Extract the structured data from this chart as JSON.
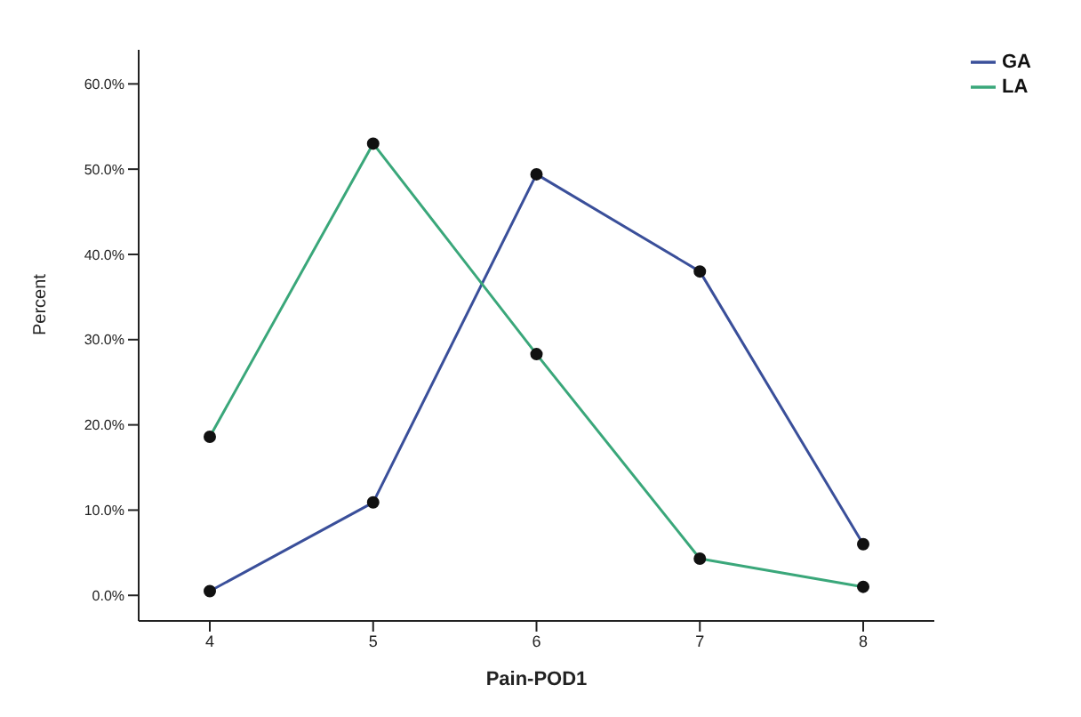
{
  "chart_data": {
    "type": "line",
    "xlabel": "Pain-POD1",
    "ylabel": "Percent",
    "categories": [
      "4",
      "5",
      "6",
      "7",
      "8"
    ],
    "series": [
      {
        "name": "GA",
        "color": "#3a4f9a",
        "values": [
          0.5,
          10.9,
          49.4,
          38,
          6
        ]
      },
      {
        "name": "LA",
        "color": "#3aa77a",
        "values": [
          18.6,
          53,
          28.3,
          4.3,
          1
        ]
      }
    ],
    "ylim": [
      -3,
      64
    ],
    "yticks": [
      {
        "value": 0,
        "label": "0.0%"
      },
      {
        "value": 10,
        "label": "10.0%"
      },
      {
        "value": 20,
        "label": "20.0%"
      },
      {
        "value": 30,
        "label": "30.0%"
      },
      {
        "value": 40,
        "label": "40.0%"
      },
      {
        "value": 50,
        "label": "50.0%"
      },
      {
        "value": 60,
        "label": "60.0%"
      }
    ],
    "grid": false,
    "legend": "top right",
    "marker": "circle",
    "line_style": "solid"
  }
}
